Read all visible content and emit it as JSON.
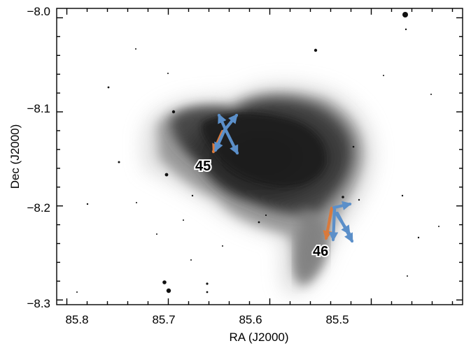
{
  "image": {
    "x_axis_label": "RA (J2000)",
    "y_axis_label": "Dec (J2000)",
    "x_ticks": [
      "85.8",
      "85.7",
      "85.6",
      "85.5"
    ],
    "y_ticks": [
      "−8.0",
      "−8.1",
      "−8.2",
      "−8.3"
    ],
    "x_tick_values": [
      85.8,
      85.7,
      85.6,
      85.5
    ],
    "y_tick_values": [
      -8.0,
      -8.1,
      -8.2,
      -8.3
    ],
    "x_range": [
      85.81,
      85.41
    ],
    "y_range": [
      -7.99,
      -8.305
    ],
    "colormap": "inverted grayscale (dark = bright emission)",
    "sources": [
      {
        "label": "45",
        "ra": 85.638,
        "dec": -8.128
      },
      {
        "label": "46",
        "ra": 85.532,
        "dec": -8.215
      }
    ],
    "arrow_colors": {
      "orange": "#d97a3c",
      "blue": "#5b8fc9"
    }
  }
}
